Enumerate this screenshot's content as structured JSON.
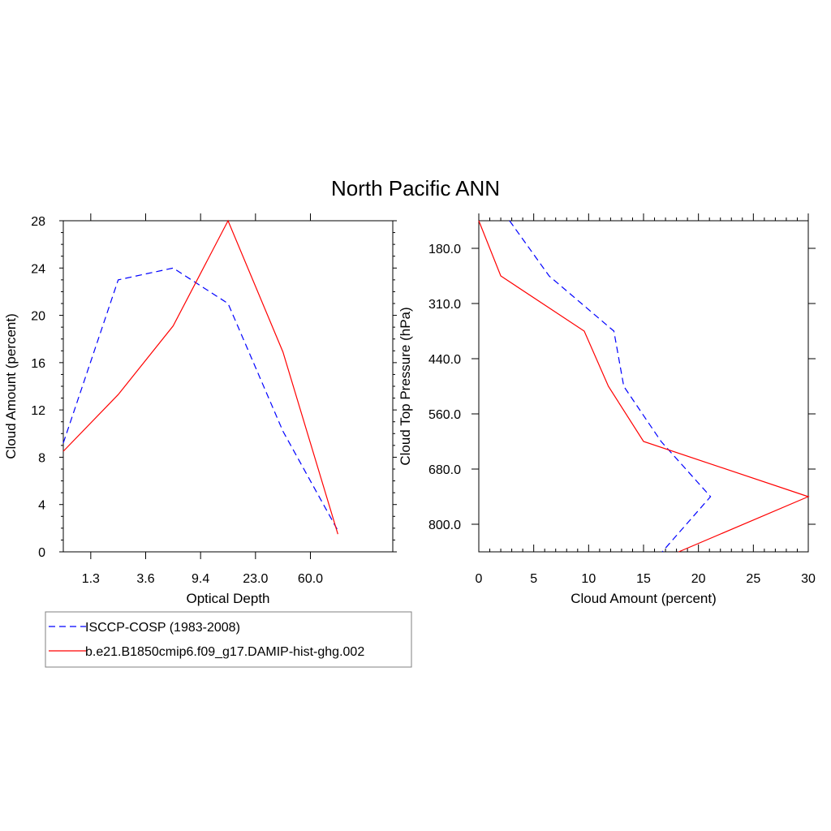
{
  "title": "North Pacific ANN",
  "colors": {
    "obs": "#0000ff",
    "model": "#ff0000"
  },
  "legend": [
    {
      "label": "ISCCP-COSP (1983-2008)",
      "style": "dashed",
      "color": "#0000ff"
    },
    {
      "label": "b.e21.B1850cmip6.f09_g17.DAMIP-hist-ghg.002",
      "style": "solid",
      "color": "#ff0000"
    }
  ],
  "chart_data": [
    {
      "type": "line",
      "xlabel": "Optical Depth",
      "ylabel": "Cloud Amount (percent)",
      "x_categories_index": [
        0,
        1,
        2,
        3,
        4,
        5,
        6
      ],
      "xlim": [
        0,
        6
      ],
      "ylim": [
        0,
        28
      ],
      "x_ticks": [
        {
          "value": 0.5,
          "label": "1.3"
        },
        {
          "value": 1.5,
          "label": "3.6"
        },
        {
          "value": 2.5,
          "label": "9.4"
        },
        {
          "value": 3.5,
          "label": "23.0"
        },
        {
          "value": 4.5,
          "label": "60.0"
        }
      ],
      "y_ticks": [
        0,
        4,
        8,
        12,
        16,
        20,
        24,
        28
      ],
      "series": [
        {
          "name": "ISCCP-COSP (1983-2008)",
          "style": "dashed",
          "x": [
            0,
            1,
            2,
            3,
            4,
            5
          ],
          "values": [
            9.2,
            23.0,
            24.0,
            21.0,
            10.2,
            1.8
          ]
        },
        {
          "name": "b.e21.B1850cmip6.f09_g17.DAMIP-hist-ghg.002",
          "style": "solid",
          "x": [
            0,
            1,
            2,
            3,
            4,
            5
          ],
          "values": [
            8.5,
            13.3,
            19.1,
            28.0,
            16.9,
            1.5
          ]
        }
      ]
    },
    {
      "type": "line",
      "xlabel": "Cloud Amount (percent)",
      "ylabel": "Cloud Top Pressure (hPa)",
      "xlim": [
        0,
        30
      ],
      "ylim_index": [
        0,
        6
      ],
      "x_ticks": [
        0,
        5,
        10,
        15,
        20,
        25,
        30
      ],
      "y_ticks": [
        {
          "value": 0.5,
          "label": "180.0"
        },
        {
          "value": 1.5,
          "label": "310.0"
        },
        {
          "value": 2.5,
          "label": "440.0"
        },
        {
          "value": 3.5,
          "label": "560.0"
        },
        {
          "value": 4.5,
          "label": "680.0"
        },
        {
          "value": 5.5,
          "label": "800.0"
        }
      ],
      "series": [
        {
          "name": "ISCCP-COSP (1983-2008)",
          "style": "dashed",
          "level": [
            0,
            1,
            2,
            3,
            4,
            5,
            6
          ],
          "values": [
            2.8,
            6.4,
            12.3,
            13.2,
            16.6,
            21.1,
            16.7
          ]
        },
        {
          "name": "b.e21.B1850cmip6.f09_g17.DAMIP-hist-ghg.002",
          "style": "solid",
          "level": [
            0,
            1,
            2,
            3,
            4,
            5,
            6
          ],
          "values": [
            0.0,
            2.0,
            9.6,
            11.8,
            15.0,
            30.0,
            18.2
          ]
        }
      ]
    }
  ]
}
